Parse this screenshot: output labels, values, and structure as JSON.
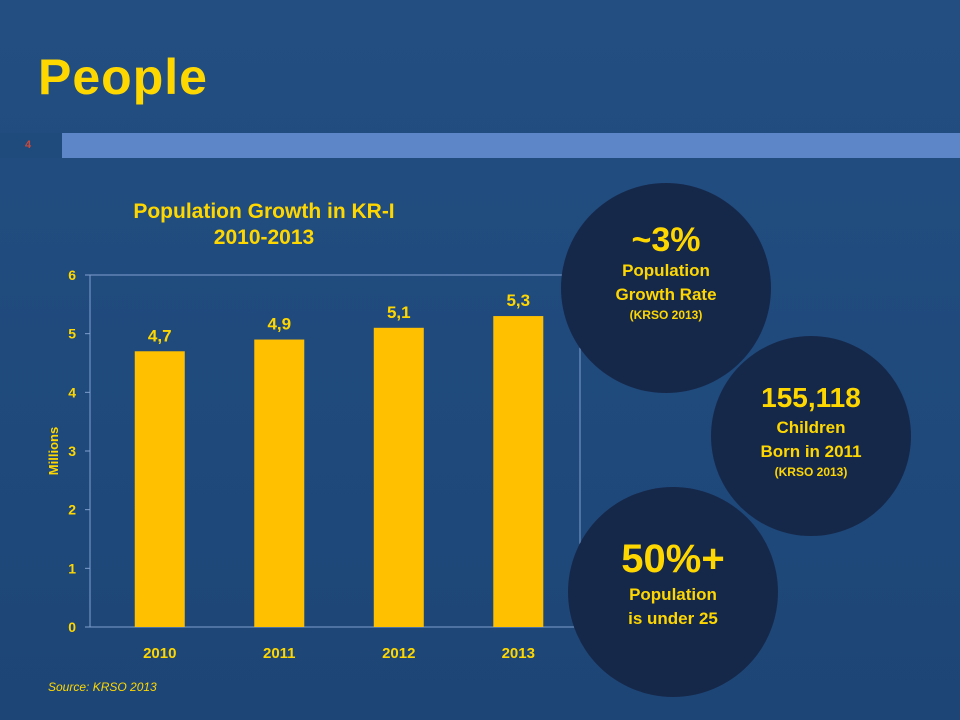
{
  "slide": {
    "title": "People",
    "number": "4"
  },
  "chart_data": {
    "type": "bar",
    "title": "Population Growth in KR-I\n2010-2013",
    "categories": [
      "2010",
      "2011",
      "2012",
      "2013"
    ],
    "values": [
      4.7,
      4.9,
      5.1,
      5.3
    ],
    "data_labels": [
      "4,7",
      "4,9",
      "5,1",
      "5,3"
    ],
    "xlabel": "",
    "ylabel": "Millions",
    "ylim": [
      0,
      6
    ],
    "yticks": [
      "0",
      "1",
      "2",
      "3",
      "4",
      "5",
      "6"
    ],
    "grid": false,
    "legend": "none",
    "bar_color": "#ffc000"
  },
  "source": "Source: KRSO 2013",
  "circles": [
    {
      "big": "~3%",
      "line1": "Population",
      "line2": "Growth Rate",
      "note": "(KRSO 2013)"
    },
    {
      "big": "155,118",
      "line1": "Children",
      "line2": "Born in 2011",
      "note": "(KRSO 2013)"
    },
    {
      "big": "50%+",
      "line1": "Population",
      "line2": "is under 25",
      "note": ""
    }
  ],
  "colors": {
    "background": "#1f4a7c",
    "title": "#ffd700",
    "accent_bar": "#5c86c8",
    "circle": "#16284a"
  }
}
